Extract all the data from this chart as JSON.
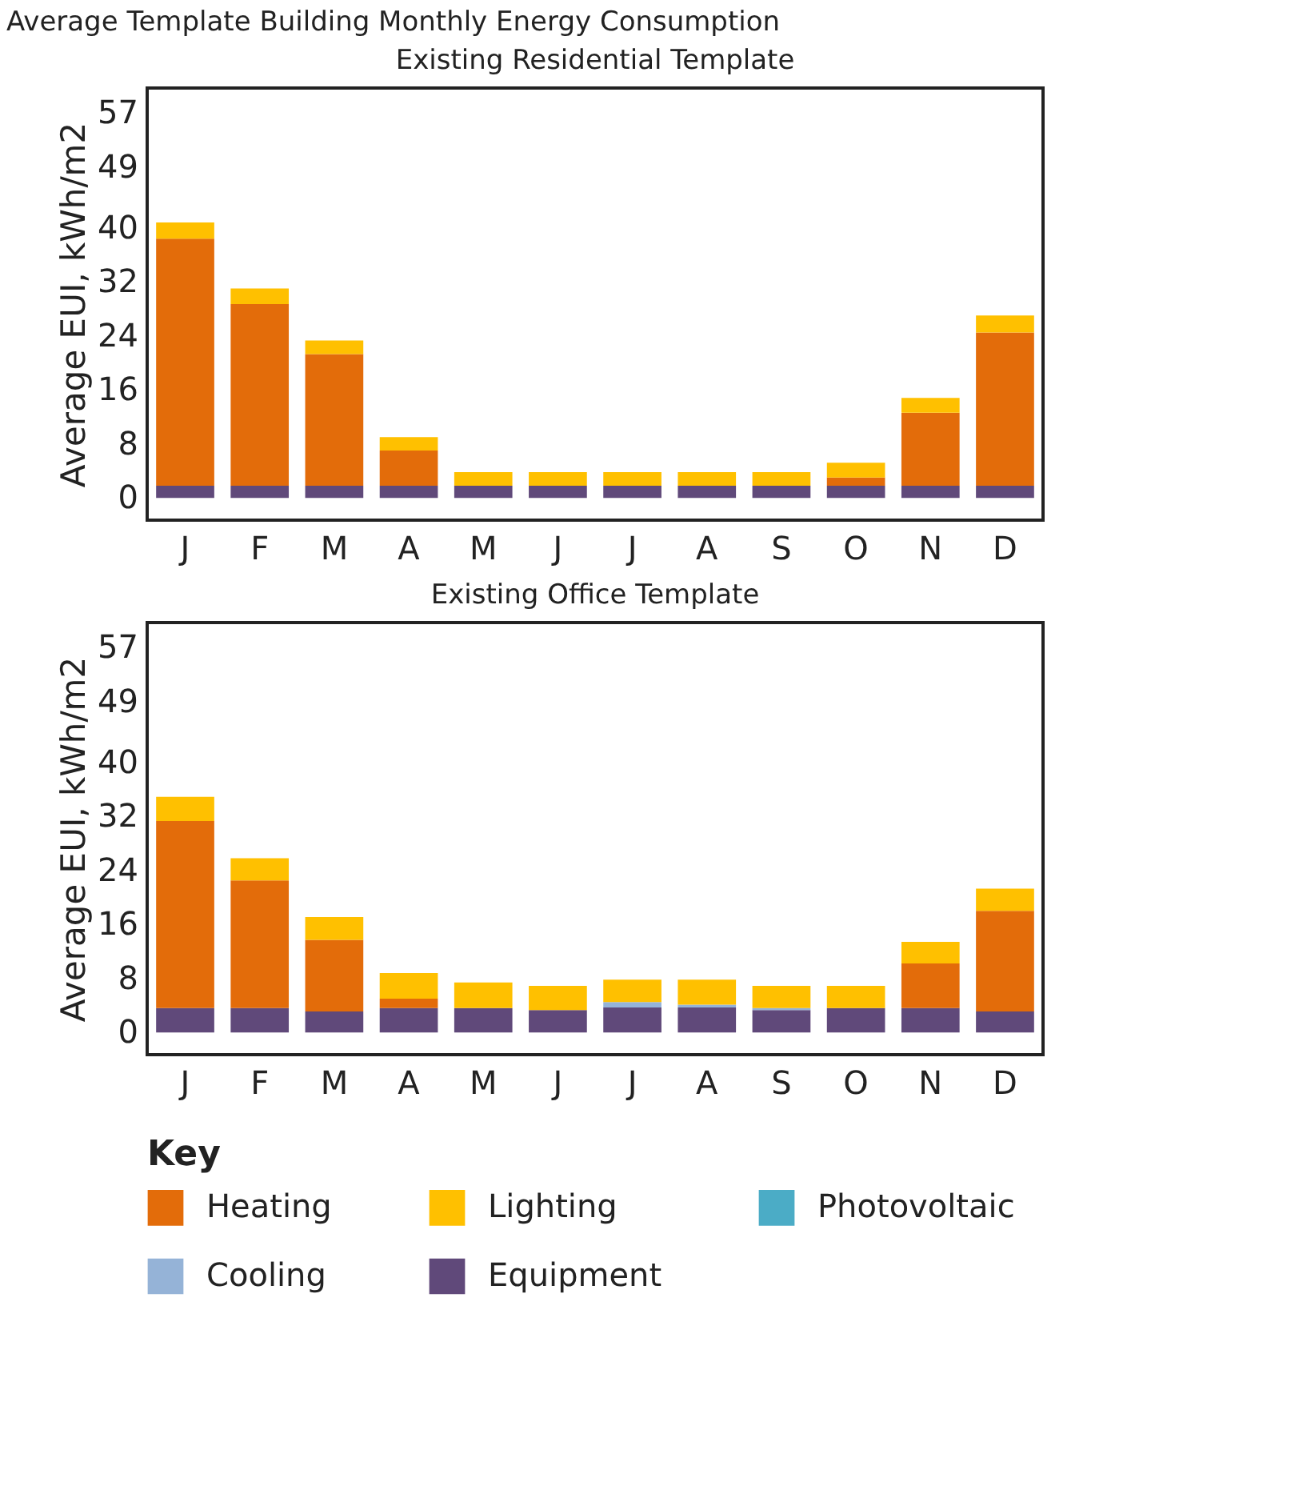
{
  "chart_data": [
    {
      "type": "bar",
      "stacked": true,
      "title": "Existing Residential Template",
      "annotations": [
        "Average Template Building Monthly Energy Consumption"
      ],
      "ylabel": "Average EUI, kWh/m2",
      "categories": [
        "J",
        "F",
        "M",
        "A",
        "M",
        "J",
        "J",
        "A",
        "S",
        "O",
        "N",
        "D"
      ],
      "ylim": [
        -3.3,
        60.7
      ],
      "yticks": [
        0,
        8,
        16,
        24,
        32,
        40,
        49,
        57
      ],
      "grid": false,
      "legend": false,
      "series": [
        {
          "color": "#60497a",
          "values": [
            1.8,
            1.8,
            1.8,
            1.8,
            1.8,
            1.8,
            1.8,
            1.8,
            1.8,
            1.8,
            1.8,
            1.8
          ]
        },
        {
          "color": "#e36c0a",
          "values": [
            36.6,
            26.9,
            19.5,
            5.2,
            null,
            null,
            null,
            null,
            null,
            1.2,
            10.8,
            22.7
          ]
        },
        {
          "color": "#ffc000",
          "values": [
            2.4,
            2.3,
            2.0,
            2.0,
            2.0,
            2.0,
            2.0,
            2.0,
            2.0,
            2.2,
            2.2,
            2.5
          ]
        }
      ]
    },
    {
      "type": "bar",
      "stacked": true,
      "title": "Existing Office Template",
      "ylabel": "Average EUI, kWh/m2",
      "categories": [
        "J",
        "F",
        "M",
        "A",
        "M",
        "J",
        "J",
        "A",
        "S",
        "O",
        "N",
        "D"
      ],
      "ylim": [
        -3.3,
        60.7
      ],
      "yticks": [
        0,
        8,
        16,
        24,
        32,
        40,
        49,
        57
      ],
      "grid": false,
      "legend": "bottom",
      "legend_title": "Key",
      "series": [
        {
          "name": "Equipment",
          "color": "#60497a",
          "values": [
            3.6,
            3.6,
            3.1,
            3.6,
            3.6,
            3.3,
            3.7,
            3.7,
            3.3,
            3.6,
            3.6,
            3.1
          ]
        },
        {
          "name": "Cooling",
          "color": "#95b3d7",
          "values": [
            null,
            null,
            null,
            null,
            null,
            null,
            0.8,
            0.4,
            0.3,
            null,
            null,
            null
          ]
        },
        {
          "name": "Heating",
          "color": "#e36c0a",
          "values": [
            27.7,
            18.9,
            10.6,
            1.4,
            null,
            null,
            null,
            null,
            null,
            null,
            6.6,
            14.9
          ]
        },
        {
          "name": "Lighting",
          "color": "#ffc000",
          "values": [
            3.6,
            3.3,
            3.4,
            3.8,
            3.8,
            3.6,
            3.3,
            3.7,
            3.3,
            3.3,
            3.2,
            3.3
          ]
        },
        {
          "name": "Photovoltaic",
          "color": "#4bacc6",
          "values": [
            null,
            null,
            null,
            null,
            null,
            null,
            null,
            null,
            null,
            null,
            null,
            null
          ]
        }
      ]
    }
  ]
}
